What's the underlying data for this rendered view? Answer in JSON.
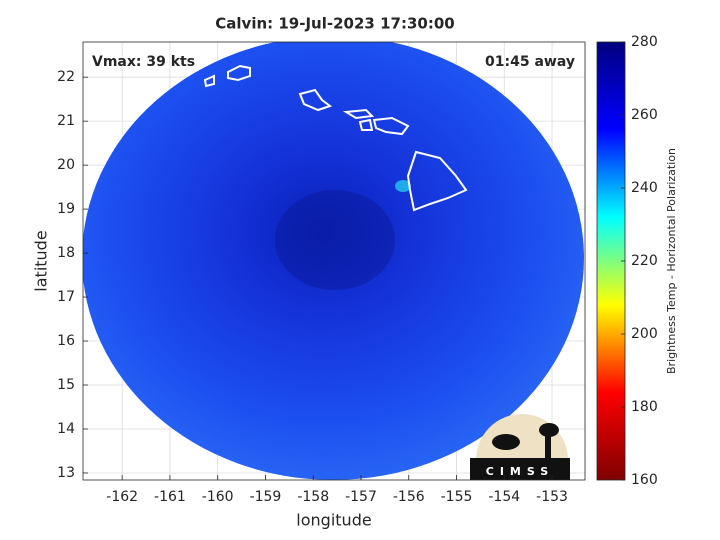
{
  "chart_data": {
    "type": "map",
    "title": "Calvin: 19-Jul-2023 17:30:00",
    "annotations": [
      "Vmax: 39 kts",
      "01:45 away"
    ],
    "x_label": "longitude",
    "y_label": "latitude",
    "xlim": [
      -162.82,
      -152.31
    ],
    "ylim": [
      12.84,
      22.8
    ],
    "xticks": [
      -162,
      -161,
      -160,
      -159,
      -158,
      -157,
      -156,
      -155,
      -154,
      -153
    ],
    "yticks": [
      13,
      14,
      15,
      16,
      17,
      18,
      19,
      20,
      21,
      22
    ],
    "grid": true,
    "colorbar": {
      "label": "Brightness Temp - Horizontal Polarization",
      "clim": [
        160,
        280
      ],
      "ticks": [
        160,
        180,
        200,
        220,
        240,
        260,
        280
      ],
      "colormap": [
        "#800000",
        "#ff0000",
        "#ffff00",
        "#00ffff",
        "#0000ff",
        "#000080"
      ]
    },
    "logo": "CIMSS"
  }
}
